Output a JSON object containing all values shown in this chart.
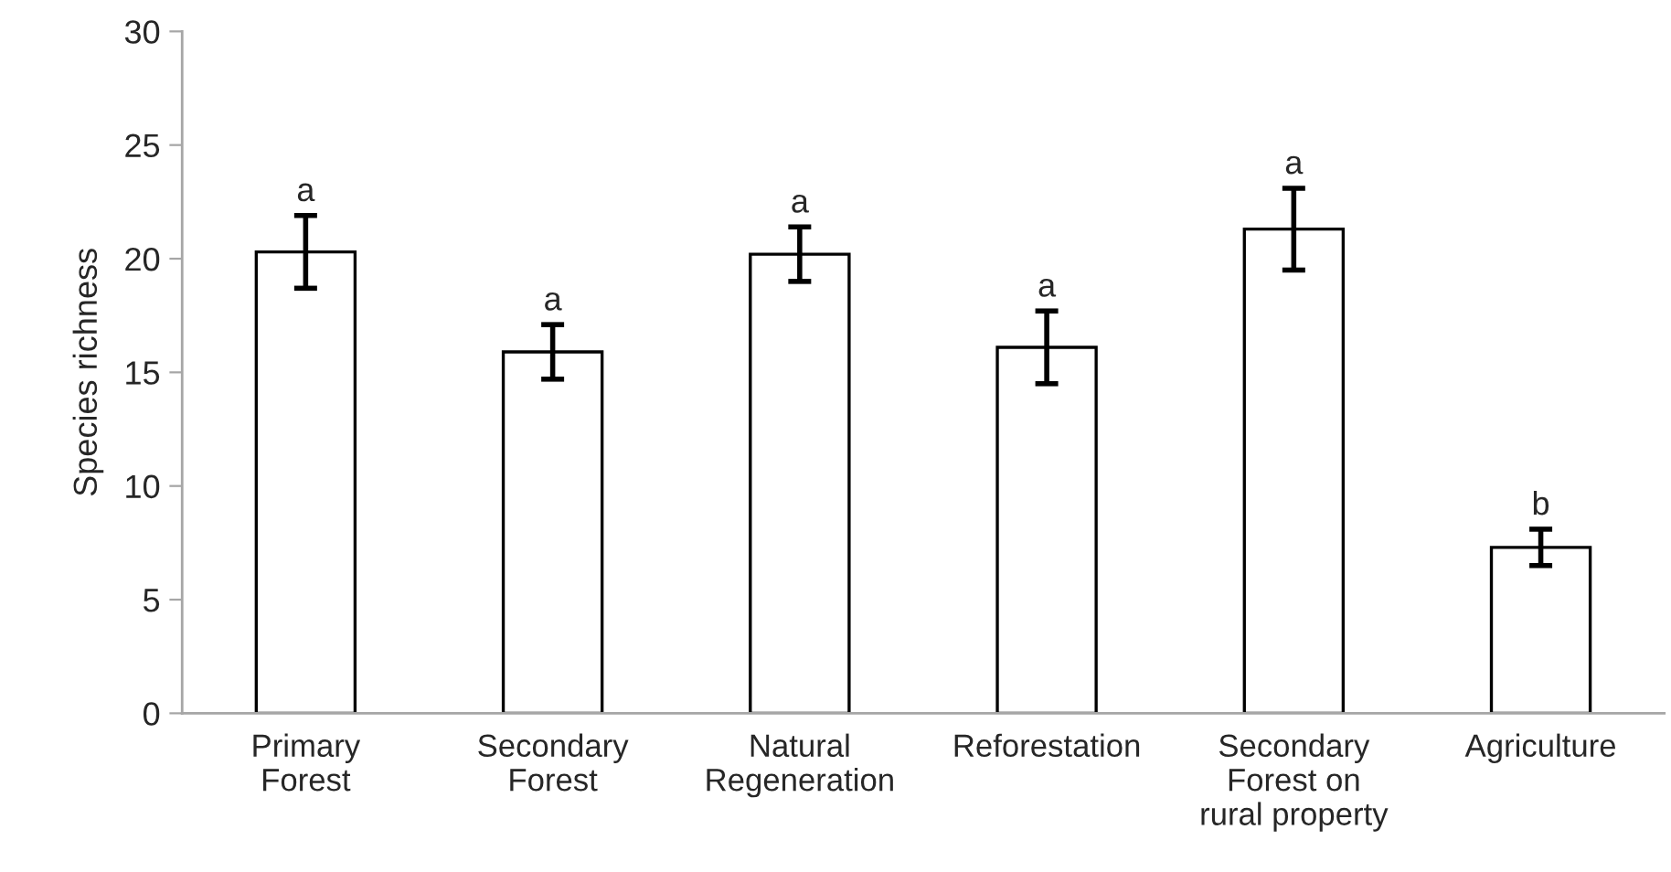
{
  "chart_data": {
    "type": "bar",
    "ylabel": "Species richness",
    "categories": [
      "Primary\nForest",
      "Secondary\nForest",
      "Natural\nRegeneration",
      "Reforestation",
      "Secondary\nForest on\nrural property",
      "Agriculture"
    ],
    "values": [
      20.3,
      15.9,
      20.2,
      16.1,
      21.3,
      7.3
    ],
    "errors": [
      1.6,
      1.2,
      1.2,
      1.6,
      1.8,
      0.8
    ],
    "color": "#ffffff",
    "ylim": [
      0,
      30
    ],
    "yticks": [
      0,
      5,
      10,
      15,
      20,
      25,
      30
    ],
    "grid": false,
    "annotations": [
      {
        "text": "a",
        "x": "Primary\nForest",
        "y": 21.9
      },
      {
        "text": "a",
        "x": "Secondary\nForest",
        "y": 17.1
      },
      {
        "text": "a",
        "x": "Natural\nRegeneration",
        "y": 21.4
      },
      {
        "text": "a",
        "x": "Reforestation",
        "y": 17.7
      },
      {
        "text": "a",
        "x": "Secondary\nForest on\nrural property",
        "y": 23.1
      },
      {
        "text": "b",
        "x": "Agriculture",
        "y": 8.1
      }
    ]
  }
}
